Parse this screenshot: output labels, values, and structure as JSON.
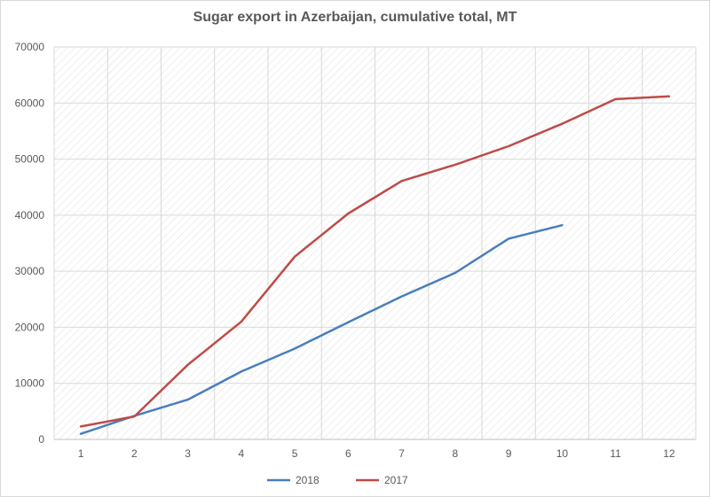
{
  "chart_data": {
    "type": "line",
    "title": "Sugar export in Azerbaijan, cumulative total, MT",
    "xlabel": "",
    "ylabel": "",
    "x": [
      1,
      2,
      3,
      4,
      5,
      6,
      7,
      8,
      9,
      10,
      11,
      12
    ],
    "ylim": [
      0,
      70000
    ],
    "yticks": [
      0,
      10000,
      20000,
      30000,
      40000,
      50000,
      60000,
      70000
    ],
    "grid": true,
    "legend_position": "bottom",
    "series": [
      {
        "name": "2018",
        "color": "#4a7ebb",
        "values": [
          1000,
          4200,
          7100,
          12100,
          16200,
          20900,
          25500,
          29700,
          35800,
          38200,
          null,
          null
        ]
      },
      {
        "name": "2017",
        "color": "#be4b48",
        "values": [
          2300,
          4100,
          13300,
          21000,
          32600,
          40300,
          46100,
          49000,
          52300,
          56300,
          60700,
          61200
        ]
      }
    ]
  }
}
